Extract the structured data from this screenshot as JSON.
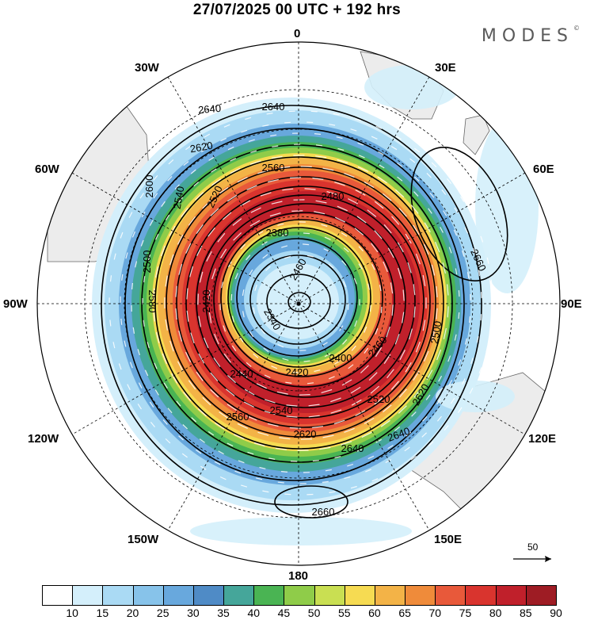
{
  "header": {
    "title": "27/07/2025  00 UTC  + 192 hrs",
    "brand": "MODES",
    "brand_mark": "©"
  },
  "map": {
    "projection": "polar stereographic, south pole centred",
    "longitude_labels": {
      "top": "0",
      "top_right": "30E",
      "upper_right": "60E",
      "right": "90E",
      "lower_right": "120E",
      "bottom_right": "150E",
      "bottom": "180",
      "bottom_left": "150W",
      "lower_left": "120W",
      "left": "90W",
      "upper_left": "60W",
      "top_left": "30W"
    },
    "contour_labels": [
      "2640",
      "2640",
      "2620",
      "2560",
      "2480",
      "2380",
      "2460",
      "2340",
      "2420",
      "2440",
      "2420",
      "2400",
      "2460",
      "2500",
      "2520",
      "2540",
      "2560",
      "2620",
      "2640",
      "2640",
      "2620",
      "2660",
      "2660",
      "2500",
      "2580",
      "2600",
      "2520",
      "2540"
    ],
    "reference_vector": "50",
    "colors": {
      "land": "#ececec",
      "wind_vectors": "#ffffff",
      "contours": "#000000"
    }
  },
  "colorbar": {
    "levels": [
      "10",
      "15",
      "20",
      "25",
      "30",
      "35",
      "40",
      "45",
      "50",
      "55",
      "60",
      "65",
      "70",
      "75",
      "80",
      "85",
      "90"
    ],
    "colors": [
      "#ffffff",
      "#d4effb",
      "#aadaf4",
      "#87c3ea",
      "#68a8dd",
      "#4f8bc6",
      "#45a69a",
      "#4ab453",
      "#8fcc49",
      "#c9df52",
      "#f6db52",
      "#f3b347",
      "#ef8b3a",
      "#e8593a",
      "#d9342e",
      "#c0202b",
      "#9e1c24"
    ]
  }
}
